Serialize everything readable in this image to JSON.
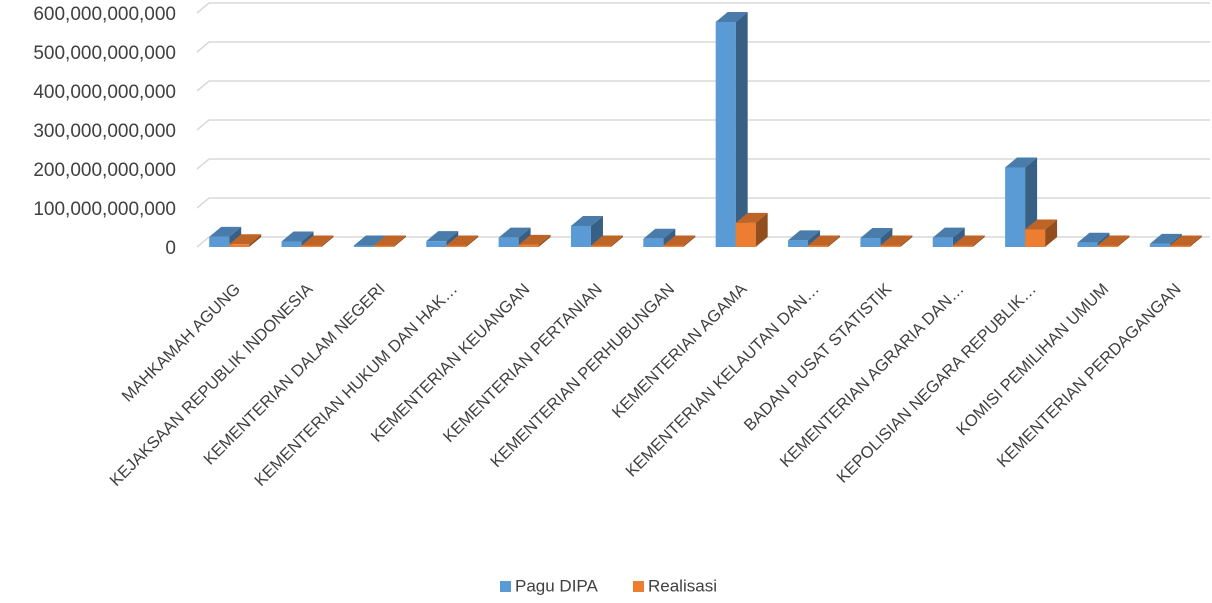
{
  "chart_data": {
    "type": "bar",
    "title": "",
    "xlabel": "",
    "ylabel": "",
    "ylim": [
      0,
      600000000000
    ],
    "y_ticks": [
      "0",
      "100,000,000,000",
      "200,000,000,000",
      "300,000,000,000",
      "400,000,000,000",
      "500,000,000,000",
      "600,000,000,000"
    ],
    "grid": true,
    "legend_position": "bottom",
    "style": "3d-clustered-column",
    "categories": [
      "MAHKAMAH AGUNG",
      "KEJAKSAAN REPUBLIK INDONESIA",
      "KEMENTERIAN DALAM  NEGERI",
      "KEMENTERIAN HUKUM DAN HAK…",
      "KEMENTERIAN KEUANGAN",
      "KEMENTERIAN PERTANIAN",
      "KEMENTERIAN PERHUBUNGAN",
      "KEMENTERIAN AGAMA",
      "KEMENTERIAN KELAUTAN DAN…",
      "BADAN PUSAT STATISTIK",
      "KEMENTERIAN AGRARIA DAN…",
      "KEPOLISIAN NEGARA REPUBLIK…",
      "KOMISI PEMILIHAN UMUM",
      "KEMENTERIAN PERDAGANGAN"
    ],
    "series": [
      {
        "name": "Pagu DIPA",
        "color": "#5b9bd5",
        "values": [
          26000000000,
          14000000000,
          3500000000,
          15000000000,
          24000000000,
          54000000000,
          21000000000,
          577000000000,
          17000000000,
          23000000000,
          24000000000,
          204000000000,
          11000000000,
          8000000000
        ]
      },
      {
        "name": "Realisasi",
        "color": "#ed7d31",
        "values": [
          7000000000,
          3000000000,
          1000000000,
          3500000000,
          5500000000,
          3000000000,
          3000000000,
          62000000000,
          4000000000,
          3000000000,
          2500000000,
          45000000000,
          2000000000,
          1500000000
        ]
      }
    ]
  }
}
